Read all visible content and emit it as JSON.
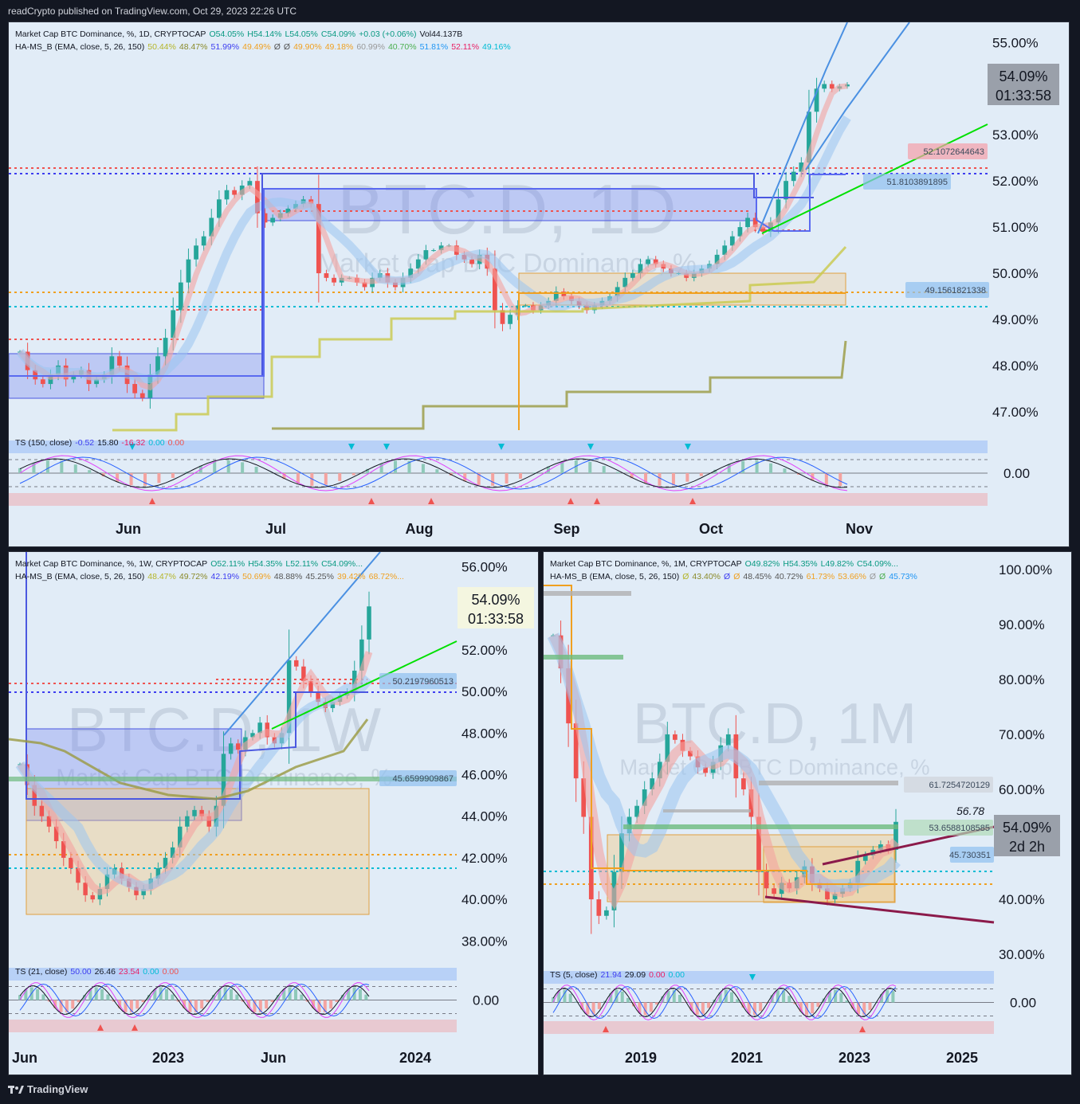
{
  "header": {
    "published": "readCrypto published on TradingView.com, Oct 29, 2023 22:26 UTC"
  },
  "footer": {
    "brand": "TradingView"
  },
  "colors": {
    "bg": "#131722",
    "panel": "#e1ecf7",
    "up": "#26a69a",
    "down": "#ef5350"
  },
  "panels": {
    "daily": {
      "legend1": [
        "Market Cap BTC Dominance, %, 1D, CRYPTOCAP",
        "O54.05%",
        "H54.14%",
        "L54.05%",
        "C54.09%",
        "+0.03 (+0.06%)",
        "Vol44.137B"
      ],
      "legend2": [
        "HA-MS_B (EMA, close, 5, 26, 150)",
        "50.44%",
        "48.47%",
        "51.99%",
        "49.49%",
        "Ø",
        "Ø",
        "49.90%",
        "49.18%",
        "60.99%",
        "40.70%",
        "51.81%",
        "52.11%",
        "49.16%"
      ],
      "ts_legend": [
        "TS (150, close)",
        "-0.52",
        "15.80",
        "-16.32",
        "0.00",
        "0.00"
      ],
      "watermark": "BTC.D, 1D",
      "watermark2": "Market Cap BTC Dominance, %",
      "price_tag": "54.09%",
      "countdown": "01:33:58",
      "tags": [
        "52.1072644643",
        "51.8103891895",
        "49.1561821338"
      ],
      "ts_zero": "0.00"
    },
    "weekly": {
      "legend1": [
        "Market Cap BTC Dominance, %, 1W, CRYPTOCAP",
        "O52.11%",
        "H54.35%",
        "L52.11%",
        "C54.09%..."
      ],
      "legend2": [
        "HA-MS_B (EMA, close, 5, 26, 150)",
        "48.47%",
        "49.72%",
        "42.19%",
        "50.69%",
        "48.88%",
        "45.25%",
        "39.42%",
        "68.72%..."
      ],
      "ts_legend": [
        "TS (21, close)",
        "50.00",
        "26.46",
        "23.54",
        "0.00",
        "0.00"
      ],
      "watermark": "BTC.D, 1W",
      "watermark2": "Market Cap BTC Dominance, %",
      "price_tag": "54.09%",
      "countdown": "01:33:58",
      "tags": [
        "50.2197960513",
        "45.6599909867"
      ],
      "ts_zero": "0.00"
    },
    "monthly": {
      "legend1": [
        "Market Cap BTC Dominance, %, 1M, CRYPTOCAP",
        "O49.82%",
        "H54.35%",
        "L49.82%",
        "C54.09%..."
      ],
      "legend2": [
        "HA-MS_B (EMA, close, 5, 26, 150)",
        "Ø",
        "43.40%",
        "Ø",
        "Ø",
        "48.45%",
        "40.72%",
        "61.73%",
        "53.66%",
        "Ø",
        "Ø",
        "45.73%"
      ],
      "ts_legend": [
        "TS (5, close)",
        "21.94",
        "29.09",
        "0.00",
        "0.00"
      ],
      "watermark": "BTC.D, 1M",
      "watermark2": "Market Cap BTC Dominance, %",
      "price_tag": "54.09%",
      "countdown": "2d 2h",
      "tags": [
        "61.7254720129",
        "53.6588108585",
        "45.730351"
      ],
      "level_label": "56.78",
      "ts_zero": "0.00"
    }
  },
  "chart_data": [
    {
      "type": "candlestick",
      "timeframe": "1D",
      "y_axis_ticks": [
        "55.00%",
        "53.00%",
        "52.00%",
        "51.00%",
        "50.00%",
        "49.00%",
        "48.00%",
        "47.00%"
      ],
      "ylim": [
        46.6,
        55.3
      ],
      "x_axis_ticks": [
        "Jun",
        "Jul",
        "Aug",
        "Sep",
        "Oct",
        "Nov"
      ],
      "close_series": [
        48.3,
        47.9,
        47.7,
        47.6,
        47.8,
        48.0,
        47.7,
        47.8,
        47.9,
        47.6,
        47.7,
        47.8,
        48.2,
        48.0,
        47.6,
        47.4,
        47.3,
        47.8,
        48.2,
        48.6,
        49.2,
        49.8,
        50.3,
        50.6,
        50.8,
        51.2,
        51.6,
        51.8,
        51.7,
        51.9,
        52.0,
        51.3,
        51.1,
        51.2,
        51.3,
        51.4,
        51.5,
        51.6,
        51.5,
        50.0,
        49.9,
        49.8,
        49.9,
        49.9,
        49.8,
        49.7,
        49.9,
        50.0,
        49.8,
        49.7,
        49.9,
        50.1,
        50.3,
        50.5,
        50.5,
        50.6,
        50.6,
        50.4,
        50.3,
        50.2,
        50.4,
        50.1,
        49.2,
        48.9,
        49.1,
        49.3,
        49.3,
        49.2,
        49.3,
        49.4,
        49.6,
        49.5,
        49.4,
        49.3,
        49.2,
        49.3,
        49.4,
        49.5,
        49.7,
        49.9,
        50.0,
        50.2,
        50.3,
        50.2,
        50.1,
        50.0,
        50.0,
        49.9,
        50.0,
        50.1,
        50.2,
        50.4,
        50.6,
        50.8,
        51.0,
        51.2,
        51.0,
        50.9,
        51.1,
        51.6,
        52.0,
        52.2,
        52.4,
        53.5,
        54.0,
        54.1,
        54.0,
        54.05,
        54.09
      ],
      "last_price": 54.09
    },
    {
      "type": "candlestick",
      "timeframe": "1W",
      "y_axis_ticks": [
        "56.00%",
        "54.00%",
        "52.00%",
        "50.00%",
        "48.00%",
        "46.00%",
        "44.00%",
        "42.00%",
        "40.00%",
        "38.00%"
      ],
      "ylim": [
        37.4,
        56.4
      ],
      "x_axis_ticks": [
        "Jun",
        "2023",
        "Jun",
        "2024"
      ],
      "close_series": [
        46.5,
        45.5,
        44.5,
        44.0,
        43.5,
        42.8,
        42.0,
        41.5,
        40.8,
        40.2,
        40.0,
        40.5,
        41.2,
        41.5,
        41.0,
        40.6,
        40.2,
        40.5,
        41.0,
        41.5,
        42.0,
        42.5,
        43.5,
        44.0,
        44.3,
        44.0,
        43.5,
        44.5,
        47.0,
        47.5,
        47.2,
        47.8,
        48.0,
        48.5,
        47.8,
        47.5,
        48.0,
        51.5,
        51.2,
        50.5,
        50.0,
        49.5,
        49.2,
        49.5,
        49.8,
        50.0,
        51.0,
        52.5,
        54.09
      ],
      "last_price": 54.09
    },
    {
      "type": "candlestick",
      "timeframe": "1M",
      "y_axis_ticks": [
        "100.00%",
        "90.00%",
        "80.00%",
        "70.00%",
        "60.00%",
        "40.00%",
        "30.00%"
      ],
      "ylim": [
        29,
        102
      ],
      "x_axis_ticks": [
        "2019",
        "2021",
        "2023",
        "2025"
      ],
      "close_series": [
        88,
        82,
        72,
        62,
        55,
        40,
        37,
        38,
        45,
        52,
        55,
        57,
        60,
        62,
        65,
        70,
        69,
        67,
        66,
        64,
        63,
        65,
        68,
        70,
        62,
        60,
        55,
        45,
        42,
        41,
        43,
        42,
        44,
        46,
        43,
        42,
        40,
        41,
        42,
        43,
        47,
        48,
        49,
        50,
        49,
        54.09
      ],
      "last_price": 54.09
    }
  ]
}
